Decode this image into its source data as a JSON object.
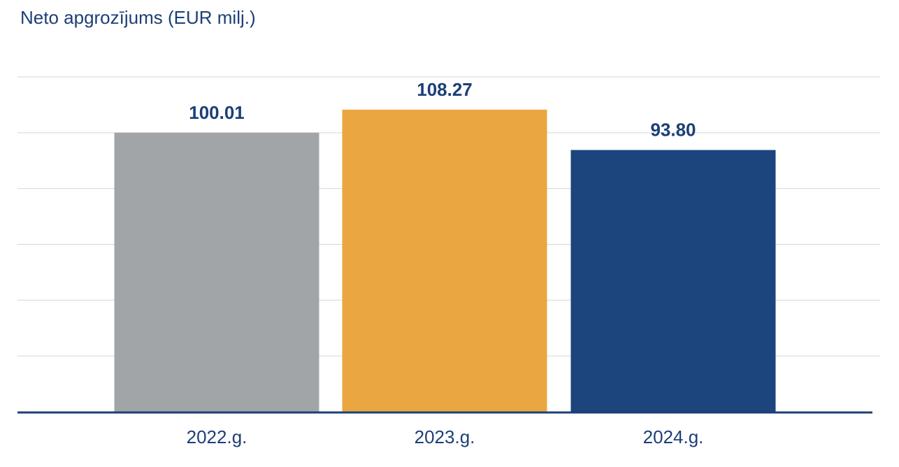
{
  "chart_data": {
    "type": "bar",
    "title": "Neto apgrozījums (EUR milj.)",
    "categories": [
      "2022.g.",
      "2023.g.",
      "2024.g."
    ],
    "values": [
      100.01,
      108.27,
      93.8
    ],
    "value_labels": [
      "100.01",
      "108.27",
      "93.80"
    ],
    "bar_colors": [
      "#a2a5a8",
      "#eaa741",
      "#1c457d"
    ],
    "ylim": [
      0,
      120
    ],
    "grid": true,
    "xlabel": "",
    "ylabel": "",
    "colors": {
      "title": "#1c3f77",
      "labels": "#1c3f77",
      "gridline": "#d6d6d6",
      "baseline": "#1c3f77"
    }
  }
}
